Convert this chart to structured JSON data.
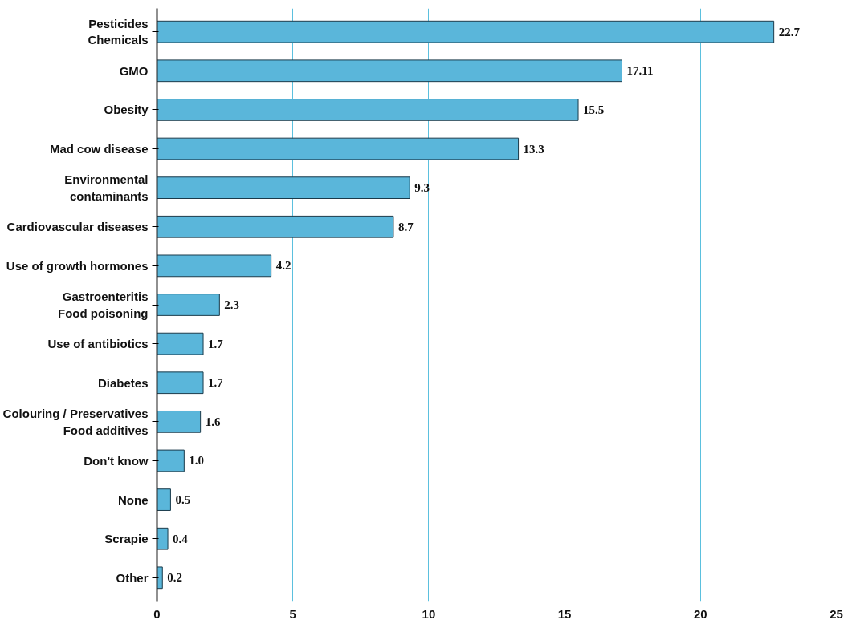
{
  "chart_data": {
    "type": "bar",
    "orientation": "horizontal",
    "categories": [
      "Pesticides\nChemicals",
      "GMO",
      "Obesity",
      "Mad cow disease",
      "Environmental\ncontaminants",
      "Cardiovascular diseases",
      "Use of growth hormones",
      "Gastroenteritis\nFood poisoning",
      "Use of antibiotics",
      "Diabetes",
      "Colouring / Preservatives\nFood additives",
      "Don't know",
      "None",
      "Scrapie",
      "Other"
    ],
    "values": [
      22.7,
      17.11,
      15.5,
      13.3,
      9.3,
      8.7,
      4.2,
      2.3,
      1.7,
      1.7,
      1.6,
      1.0,
      0.5,
      0.4,
      0.2
    ],
    "value_labels": [
      "22.7",
      "17.11",
      "15.5",
      "13.3",
      "9.3",
      "8.7",
      "4.2",
      "2.3",
      "1.7",
      "1.7",
      "1.6",
      "1.0",
      "0.5",
      "0.4",
      "0.2"
    ],
    "color": "#5ab6da",
    "xlim": [
      0,
      25
    ],
    "xticks": [
      0,
      5,
      10,
      15,
      20,
      25
    ],
    "grid": "x"
  }
}
